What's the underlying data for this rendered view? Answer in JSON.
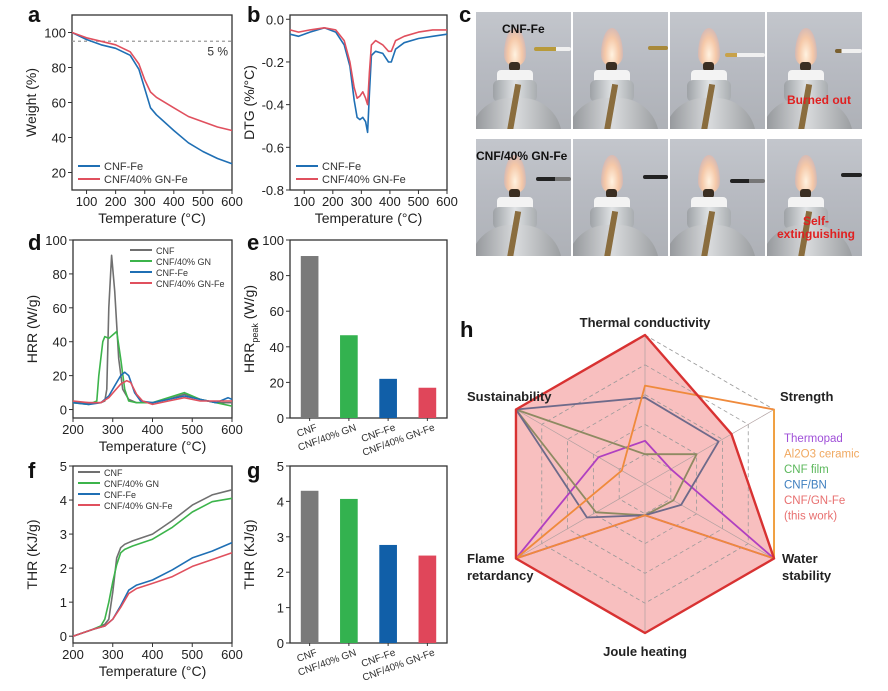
{
  "panels": {
    "a": "a",
    "b": "b",
    "c": "c",
    "d": "d",
    "e": "e",
    "f": "f",
    "g": "g",
    "h": "h"
  },
  "colors": {
    "cnf": "#707070",
    "cnf_gn": "#3cb44b",
    "cnf_fe": "#1f6fb4",
    "cnf_gn_fe": "#e0505e",
    "bar_cnf": "#7a7a7a",
    "bar_cnf_gn": "#33b24f",
    "bar_cnf_fe": "#115fa8",
    "bar_cnf_gn_fe": "#e0465a"
  },
  "photo_panel": {
    "row1_label": "CNF-Fe",
    "row2_label": "CNF/40% GN-Fe",
    "row1_status": "Burned out",
    "row2_status_line1": "Self-",
    "row2_status_line2": "extinguishing"
  },
  "chart_data": [
    {
      "id": "a",
      "type": "line",
      "xlabel": "Temperature (°C)",
      "ylabel": "Weight (%)",
      "xlim": [
        50,
        600
      ],
      "ylim": [
        10,
        110
      ],
      "xticks": [
        100,
        200,
        300,
        400,
        500,
        600
      ],
      "yticks": [
        20,
        40,
        60,
        80,
        100
      ],
      "annotation": "5 %",
      "reference_line_y": 95,
      "legend_position": "bottom-left",
      "series": [
        {
          "name": "CNF-Fe",
          "color_key": "cnf_fe",
          "x": [
            50,
            100,
            150,
            200,
            250,
            280,
            300,
            320,
            340,
            360,
            400,
            450,
            500,
            550,
            600
          ],
          "y": [
            100,
            96,
            93,
            91,
            87,
            79,
            68,
            57,
            53,
            50,
            44,
            37,
            32,
            28,
            25
          ]
        },
        {
          "name": "CNF/40% GN-Fe",
          "color_key": "cnf_gn_fe",
          "x": [
            50,
            100,
            150,
            200,
            250,
            280,
            300,
            320,
            340,
            360,
            400,
            450,
            500,
            550,
            600
          ],
          "y": [
            100,
            97,
            95,
            93,
            89,
            82,
            73,
            66,
            63,
            61,
            57,
            52,
            49,
            46,
            44
          ]
        }
      ]
    },
    {
      "id": "b",
      "type": "line",
      "xlabel": "Temperature (°C)",
      "ylabel": "DTG (%/°C)",
      "xlim": [
        50,
        600
      ],
      "ylim": [
        -0.8,
        0.02
      ],
      "xticks": [
        100,
        200,
        300,
        400,
        500,
        600
      ],
      "yticks": [
        0.0,
        -0.2,
        -0.4,
        -0.6,
        -0.8
      ],
      "ytick_labels": [
        "0.0",
        "-0.2",
        "-0.4",
        "-0.6",
        "-0.8"
      ],
      "legend_position": "bottom-left",
      "series": [
        {
          "name": "CNF-Fe",
          "color_key": "cnf_fe",
          "x": [
            50,
            80,
            120,
            170,
            210,
            240,
            260,
            275,
            285,
            295,
            305,
            315,
            322,
            328,
            335,
            350,
            375,
            395,
            405,
            420,
            450,
            500,
            550,
            600
          ],
          "y": [
            -0.07,
            -0.08,
            -0.06,
            -0.04,
            -0.06,
            -0.12,
            -0.22,
            -0.38,
            -0.46,
            -0.47,
            -0.46,
            -0.48,
            -0.53,
            -0.35,
            -0.17,
            -0.15,
            -0.16,
            -0.2,
            -0.2,
            -0.14,
            -0.11,
            -0.09,
            -0.08,
            -0.07
          ]
        },
        {
          "name": "CNF/40% GN-Fe",
          "color_key": "cnf_gn_fe",
          "x": [
            50,
            80,
            120,
            170,
            210,
            240,
            260,
            275,
            285,
            295,
            305,
            315,
            322,
            328,
            335,
            350,
            375,
            395,
            405,
            420,
            450,
            500,
            550,
            600
          ],
          "y": [
            -0.05,
            -0.06,
            -0.05,
            -0.04,
            -0.05,
            -0.1,
            -0.2,
            -0.32,
            -0.37,
            -0.36,
            -0.34,
            -0.37,
            -0.4,
            -0.25,
            -0.12,
            -0.1,
            -0.12,
            -0.15,
            -0.15,
            -0.1,
            -0.08,
            -0.06,
            -0.05,
            -0.05
          ]
        }
      ]
    },
    {
      "id": "d",
      "type": "line",
      "xlabel": "Temperature (°C)",
      "ylabel": "HRR (W/g)",
      "xlim": [
        200,
        600
      ],
      "ylim": [
        -5,
        100
      ],
      "xticks": [
        200,
        300,
        400,
        500,
        600
      ],
      "yticks": [
        0,
        20,
        40,
        60,
        80,
        100
      ],
      "legend_position": "top-right",
      "series": [
        {
          "name": "CNF",
          "color_key": "cnf",
          "x": [
            200,
            240,
            270,
            280,
            285,
            290,
            297,
            305,
            315,
            325,
            340,
            360,
            400,
            440,
            480,
            520,
            560,
            600
          ],
          "y": [
            4,
            4,
            4,
            5,
            12,
            60,
            91,
            70,
            30,
            12,
            6,
            4,
            4,
            6,
            9,
            6,
            4,
            4
          ]
        },
        {
          "name": "CNF/40% GN",
          "color_key": "cnf_gn",
          "x": [
            200,
            240,
            260,
            265,
            275,
            280,
            290,
            300,
            310,
            320,
            330,
            340,
            360,
            400,
            440,
            480,
            520,
            560,
            600
          ],
          "y": [
            4,
            3,
            5,
            20,
            40,
            43,
            42,
            44,
            46,
            30,
            12,
            5,
            4,
            4,
            7,
            10,
            6,
            4,
            2
          ]
        },
        {
          "name": "CNF-Fe",
          "color_key": "cnf_fe",
          "x": [
            200,
            240,
            270,
            290,
            305,
            320,
            330,
            340,
            355,
            370,
            400,
            440,
            480,
            520,
            560,
            590,
            600
          ],
          "y": [
            4,
            3,
            4,
            8,
            14,
            20,
            22,
            20,
            10,
            5,
            4,
            6,
            8,
            6,
            4,
            7,
            6
          ]
        },
        {
          "name": "CNF/40% GN-Fe",
          "color_key": "cnf_gn_fe",
          "x": [
            200,
            240,
            270,
            290,
            305,
            320,
            335,
            345,
            360,
            375,
            400,
            440,
            480,
            520,
            560,
            600
          ],
          "y": [
            5,
            4,
            4,
            7,
            11,
            15,
            17,
            16,
            9,
            5,
            3,
            5,
            7,
            5,
            5,
            5
          ]
        }
      ]
    },
    {
      "id": "e",
      "type": "bar",
      "ylabel": "HRR_peak (W/g)",
      "ylabel_main": "HRR",
      "ylabel_sub": "peak",
      "ylabel_unit": " (W/g)",
      "ylim": [
        0,
        100
      ],
      "yticks": [
        0,
        20,
        40,
        60,
        80,
        100
      ],
      "categories": [
        "CNF",
        "CNF/40% GN",
        "CNF-Fe",
        "CNF/40% GN-Fe"
      ],
      "values": [
        91,
        46.5,
        22,
        17
      ],
      "color_keys": [
        "bar_cnf",
        "bar_cnf_gn",
        "bar_cnf_fe",
        "bar_cnf_gn_fe"
      ]
    },
    {
      "id": "f",
      "type": "line",
      "xlabel": "Temperature (°C)",
      "ylabel": "THR (KJ/g)",
      "xlim": [
        200,
        600
      ],
      "ylim": [
        -0.2,
        5
      ],
      "xticks": [
        200,
        300,
        400,
        500,
        600
      ],
      "yticks": [
        0,
        1,
        2,
        3,
        4,
        5
      ],
      "legend_position": "top-left",
      "series": [
        {
          "name": "CNF",
          "color_key": "cnf",
          "x": [
            200,
            250,
            280,
            290,
            300,
            310,
            320,
            330,
            350,
            400,
            450,
            500,
            550,
            600
          ],
          "y": [
            0,
            0.2,
            0.35,
            0.5,
            1.3,
            2.3,
            2.6,
            2.7,
            2.8,
            3.0,
            3.4,
            3.85,
            4.15,
            4.3
          ]
        },
        {
          "name": "CNF/40% GN",
          "color_key": "cnf_gn",
          "x": [
            200,
            250,
            270,
            280,
            290,
            300,
            310,
            320,
            330,
            350,
            400,
            450,
            500,
            550,
            600
          ],
          "y": [
            0,
            0.2,
            0.3,
            0.5,
            1.0,
            1.6,
            2.1,
            2.45,
            2.55,
            2.65,
            2.85,
            3.2,
            3.65,
            3.95,
            4.05
          ]
        },
        {
          "name": "CNF-Fe",
          "color_key": "cnf_fe",
          "x": [
            200,
            250,
            280,
            300,
            320,
            340,
            360,
            400,
            450,
            500,
            550,
            600
          ],
          "y": [
            0,
            0.2,
            0.3,
            0.5,
            0.9,
            1.35,
            1.5,
            1.65,
            1.95,
            2.3,
            2.5,
            2.75
          ]
        },
        {
          "name": "CNF/40% GN-Fe",
          "color_key": "cnf_gn_fe",
          "x": [
            200,
            250,
            280,
            300,
            320,
            340,
            360,
            400,
            450,
            500,
            550,
            600
          ],
          "y": [
            0,
            0.2,
            0.3,
            0.5,
            0.85,
            1.25,
            1.4,
            1.55,
            1.75,
            2.05,
            2.25,
            2.45
          ]
        }
      ]
    },
    {
      "id": "g",
      "type": "bar",
      "ylabel": "THR (KJ/g)",
      "ylim": [
        0,
        5
      ],
      "yticks": [
        0,
        1,
        2,
        3,
        4,
        5
      ],
      "categories": [
        "CNF",
        "CNF/40% GN",
        "CNF-Fe",
        "CNF/40% GN-Fe"
      ],
      "values": [
        4.3,
        4.07,
        2.77,
        2.47
      ],
      "color_keys": [
        "bar_cnf",
        "bar_cnf_gn",
        "bar_cnf_fe",
        "bar_cnf_gn_fe"
      ]
    },
    {
      "id": "h",
      "type": "radar",
      "axes": [
        "Thermal conductivity",
        "Strength",
        "Water stability",
        "Joule heating",
        "Flame retardancy",
        "Sustainability"
      ],
      "axis_label_lines": [
        [
          "Thermal conductivity"
        ],
        [
          "Strength"
        ],
        [
          "Water",
          "stability"
        ],
        [
          "Joule heating"
        ],
        [
          "Flame",
          "retardancy"
        ],
        [
          "Sustainability"
        ]
      ],
      "range": [
        0,
        1
      ],
      "grid_levels": 5,
      "legend_position": "right",
      "series": [
        {
          "name": "CNF/GN-Fe (this work)",
          "legend_lines": [
            "CNF/GN-Fe",
            "(this work)"
          ],
          "color": "#d83232",
          "legend_color": "#e87070",
          "filled": true,
          "values": [
            1.0,
            0.67,
            1.0,
            1.0,
            1.0,
            1.0
          ]
        },
        {
          "name": "Al2O3 ceramic",
          "legend_lines": [
            "Al2O3 ceramic"
          ],
          "color": "#ef8a3c",
          "edge_color": "#f0a040",
          "legend_color": "#f0a860",
          "filled": false,
          "values": [
            0.66,
            1.0,
            1.0,
            0.21,
            1.0,
            0.18
          ]
        },
        {
          "name": "CNF/BN",
          "legend_lines": [
            "CNF/BN"
          ],
          "color": "#6e6a8a",
          "legend_color": "#3f7fbf",
          "filled": false,
          "values": [
            0.58,
            0.57,
            0.28,
            0.21,
            0.45,
            1.0
          ]
        },
        {
          "name": "CNF film",
          "legend_lines": [
            "CNF film"
          ],
          "color": "#8e8a62",
          "legend_color": "#5cb85c",
          "filled": false,
          "values": [
            0.2,
            0.4,
            0.22,
            0.21,
            0.38,
            1.0
          ]
        },
        {
          "name": "Thermopad",
          "legend_lines": [
            "Thermopad"
          ],
          "color": "#b040c0",
          "legend_color": "#a050d8",
          "filled": false,
          "values": [
            0.29,
            0.2,
            1.0,
            0.21,
            1.0,
            0.36
          ]
        }
      ],
      "legend_order": [
        "Thermopad",
        "Al2O3 ceramic",
        "CNF film",
        "CNF/BN",
        "CNF/GN-Fe (this work)"
      ]
    }
  ]
}
